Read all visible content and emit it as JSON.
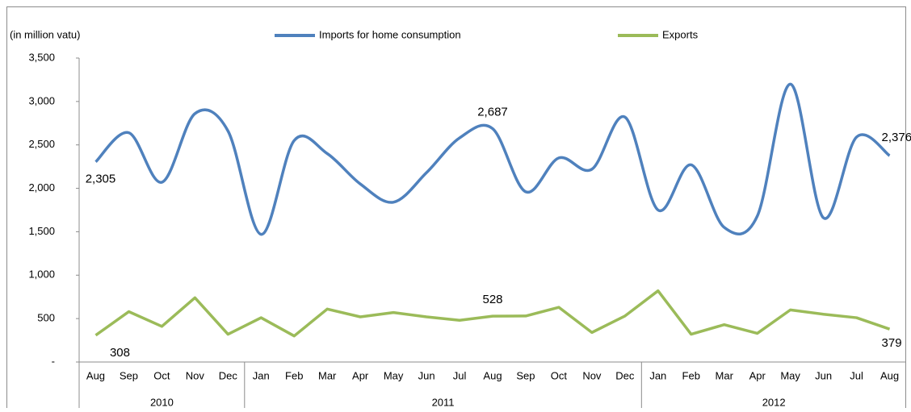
{
  "chart_data": {
    "type": "line",
    "y_axis_label": "(in million vatu)",
    "categories": [
      "Aug",
      "Sep",
      "Oct",
      "Nov",
      "Dec",
      "Jan",
      "Feb",
      "Mar",
      "Apr",
      "May",
      "Jun",
      "Jul",
      "Aug",
      "Sep",
      "Oct",
      "Nov",
      "Dec",
      "Jan",
      "Feb",
      "Mar",
      "Apr",
      "May",
      "Jun",
      "Jul",
      "Aug"
    ],
    "years": [
      {
        "label": "2010",
        "span": 5
      },
      {
        "label": "2011",
        "span": 12
      },
      {
        "label": "2012",
        "span": 8
      }
    ],
    "series": [
      {
        "name": "Imports for home consumption",
        "color": "#4f81bd",
        "smooth": true,
        "values": [
          2305,
          2640,
          2070,
          2860,
          2660,
          1470,
          2550,
          2400,
          2050,
          1840,
          2180,
          2580,
          2687,
          1960,
          2350,
          2220,
          2820,
          1750,
          2270,
          1550,
          1680,
          3200,
          1660,
          2590,
          2376
        ],
        "value_labels": [
          "2,305",
          null,
          null,
          null,
          null,
          null,
          null,
          null,
          null,
          null,
          null,
          null,
          "2,687",
          null,
          null,
          null,
          null,
          null,
          null,
          null,
          null,
          null,
          null,
          null,
          "2,376"
        ]
      },
      {
        "name": "Exports",
        "color": "#9bbb59",
        "smooth": false,
        "values": [
          308,
          580,
          410,
          740,
          320,
          510,
          300,
          610,
          520,
          570,
          520,
          480,
          528,
          530,
          630,
          340,
          530,
          820,
          320,
          430,
          330,
          600,
          550,
          510,
          379
        ],
        "value_labels": [
          "308",
          null,
          null,
          null,
          null,
          null,
          null,
          null,
          null,
          null,
          null,
          null,
          "528",
          null,
          null,
          null,
          null,
          null,
          null,
          null,
          null,
          null,
          null,
          null,
          "379"
        ]
      }
    ],
    "ylim": [
      0,
      3500
    ],
    "yticks": [
      {
        "value": 0,
        "label": "-"
      },
      500,
      {
        "value": 1000,
        "label": "1,000"
      },
      {
        "value": 1500,
        "label": "1,500"
      },
      {
        "value": 2000,
        "label": "2,000"
      },
      {
        "value": 2500,
        "label": "2,500"
      },
      {
        "value": 3000,
        "label": "3,000"
      },
      {
        "value": 3500,
        "label": "3,500"
      }
    ],
    "grid": false,
    "legend": "top"
  }
}
